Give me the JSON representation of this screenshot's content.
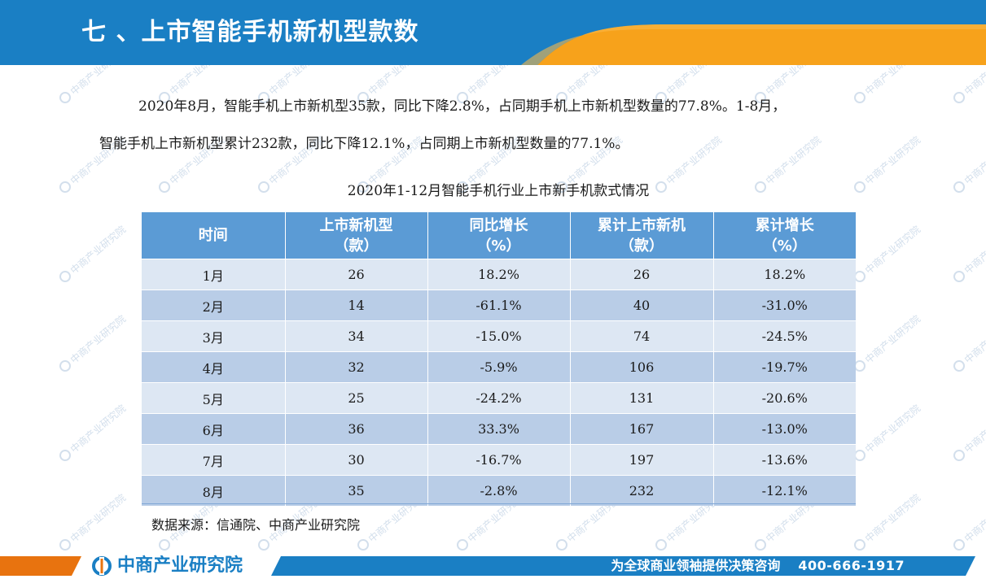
{
  "header": {
    "title": "七 、上市智能手机新机型款数"
  },
  "intro": {
    "line1": "2020年8月，智能手机上市新机型35款，同比下降2.8%，占同期手机上市新机型数量的77.8%。1-8月，",
    "line2": "智能手机上市新机型累计232款，同比下降12.1%，占同期上市新机型数量的77.1%。"
  },
  "table": {
    "caption": "2020年1-12月智能手机行业上市新手机款式情况",
    "headers": [
      {
        "line1": "时间",
        "line2": ""
      },
      {
        "line1": "上市新机型",
        "line2": "（款）"
      },
      {
        "line1": "同比增长",
        "line2": "（%）"
      },
      {
        "line1": "累计上市新机",
        "line2": "（款）"
      },
      {
        "line1": "累计增长",
        "line2": "（%）"
      }
    ],
    "rows": [
      [
        "1月",
        "26",
        "18.2%",
        "26",
        "18.2%"
      ],
      [
        "2月",
        "14",
        "-61.1%",
        "40",
        "-31.0%"
      ],
      [
        "3月",
        "34",
        "-15.0%",
        "74",
        "-24.5%"
      ],
      [
        "4月",
        "32",
        "-5.9%",
        "106",
        "-19.7%"
      ],
      [
        "5月",
        "25",
        "-24.2%",
        "131",
        "-20.6%"
      ],
      [
        "6月",
        "36",
        "33.3%",
        "167",
        "-13.0%"
      ],
      [
        "7月",
        "30",
        "-16.7%",
        "197",
        "-13.6%"
      ],
      [
        "8月",
        "35",
        "-2.8%",
        "232",
        "-12.1%"
      ]
    ]
  },
  "source": "数据来源：信通院、中商产业研究院",
  "watermark": {
    "text": "中商产业研究院"
  },
  "footer": {
    "brand": "中商产业研究院",
    "slogan": "为全球商业领袖提供决策咨询",
    "phone": "400-666-1917"
  },
  "colors": {
    "header_blue": "#1a7fc4",
    "accent_orange": "#f7a21b",
    "table_header": "#5b9bd5",
    "row_light": "#dde7f3",
    "row_dark": "#b9cde7"
  }
}
